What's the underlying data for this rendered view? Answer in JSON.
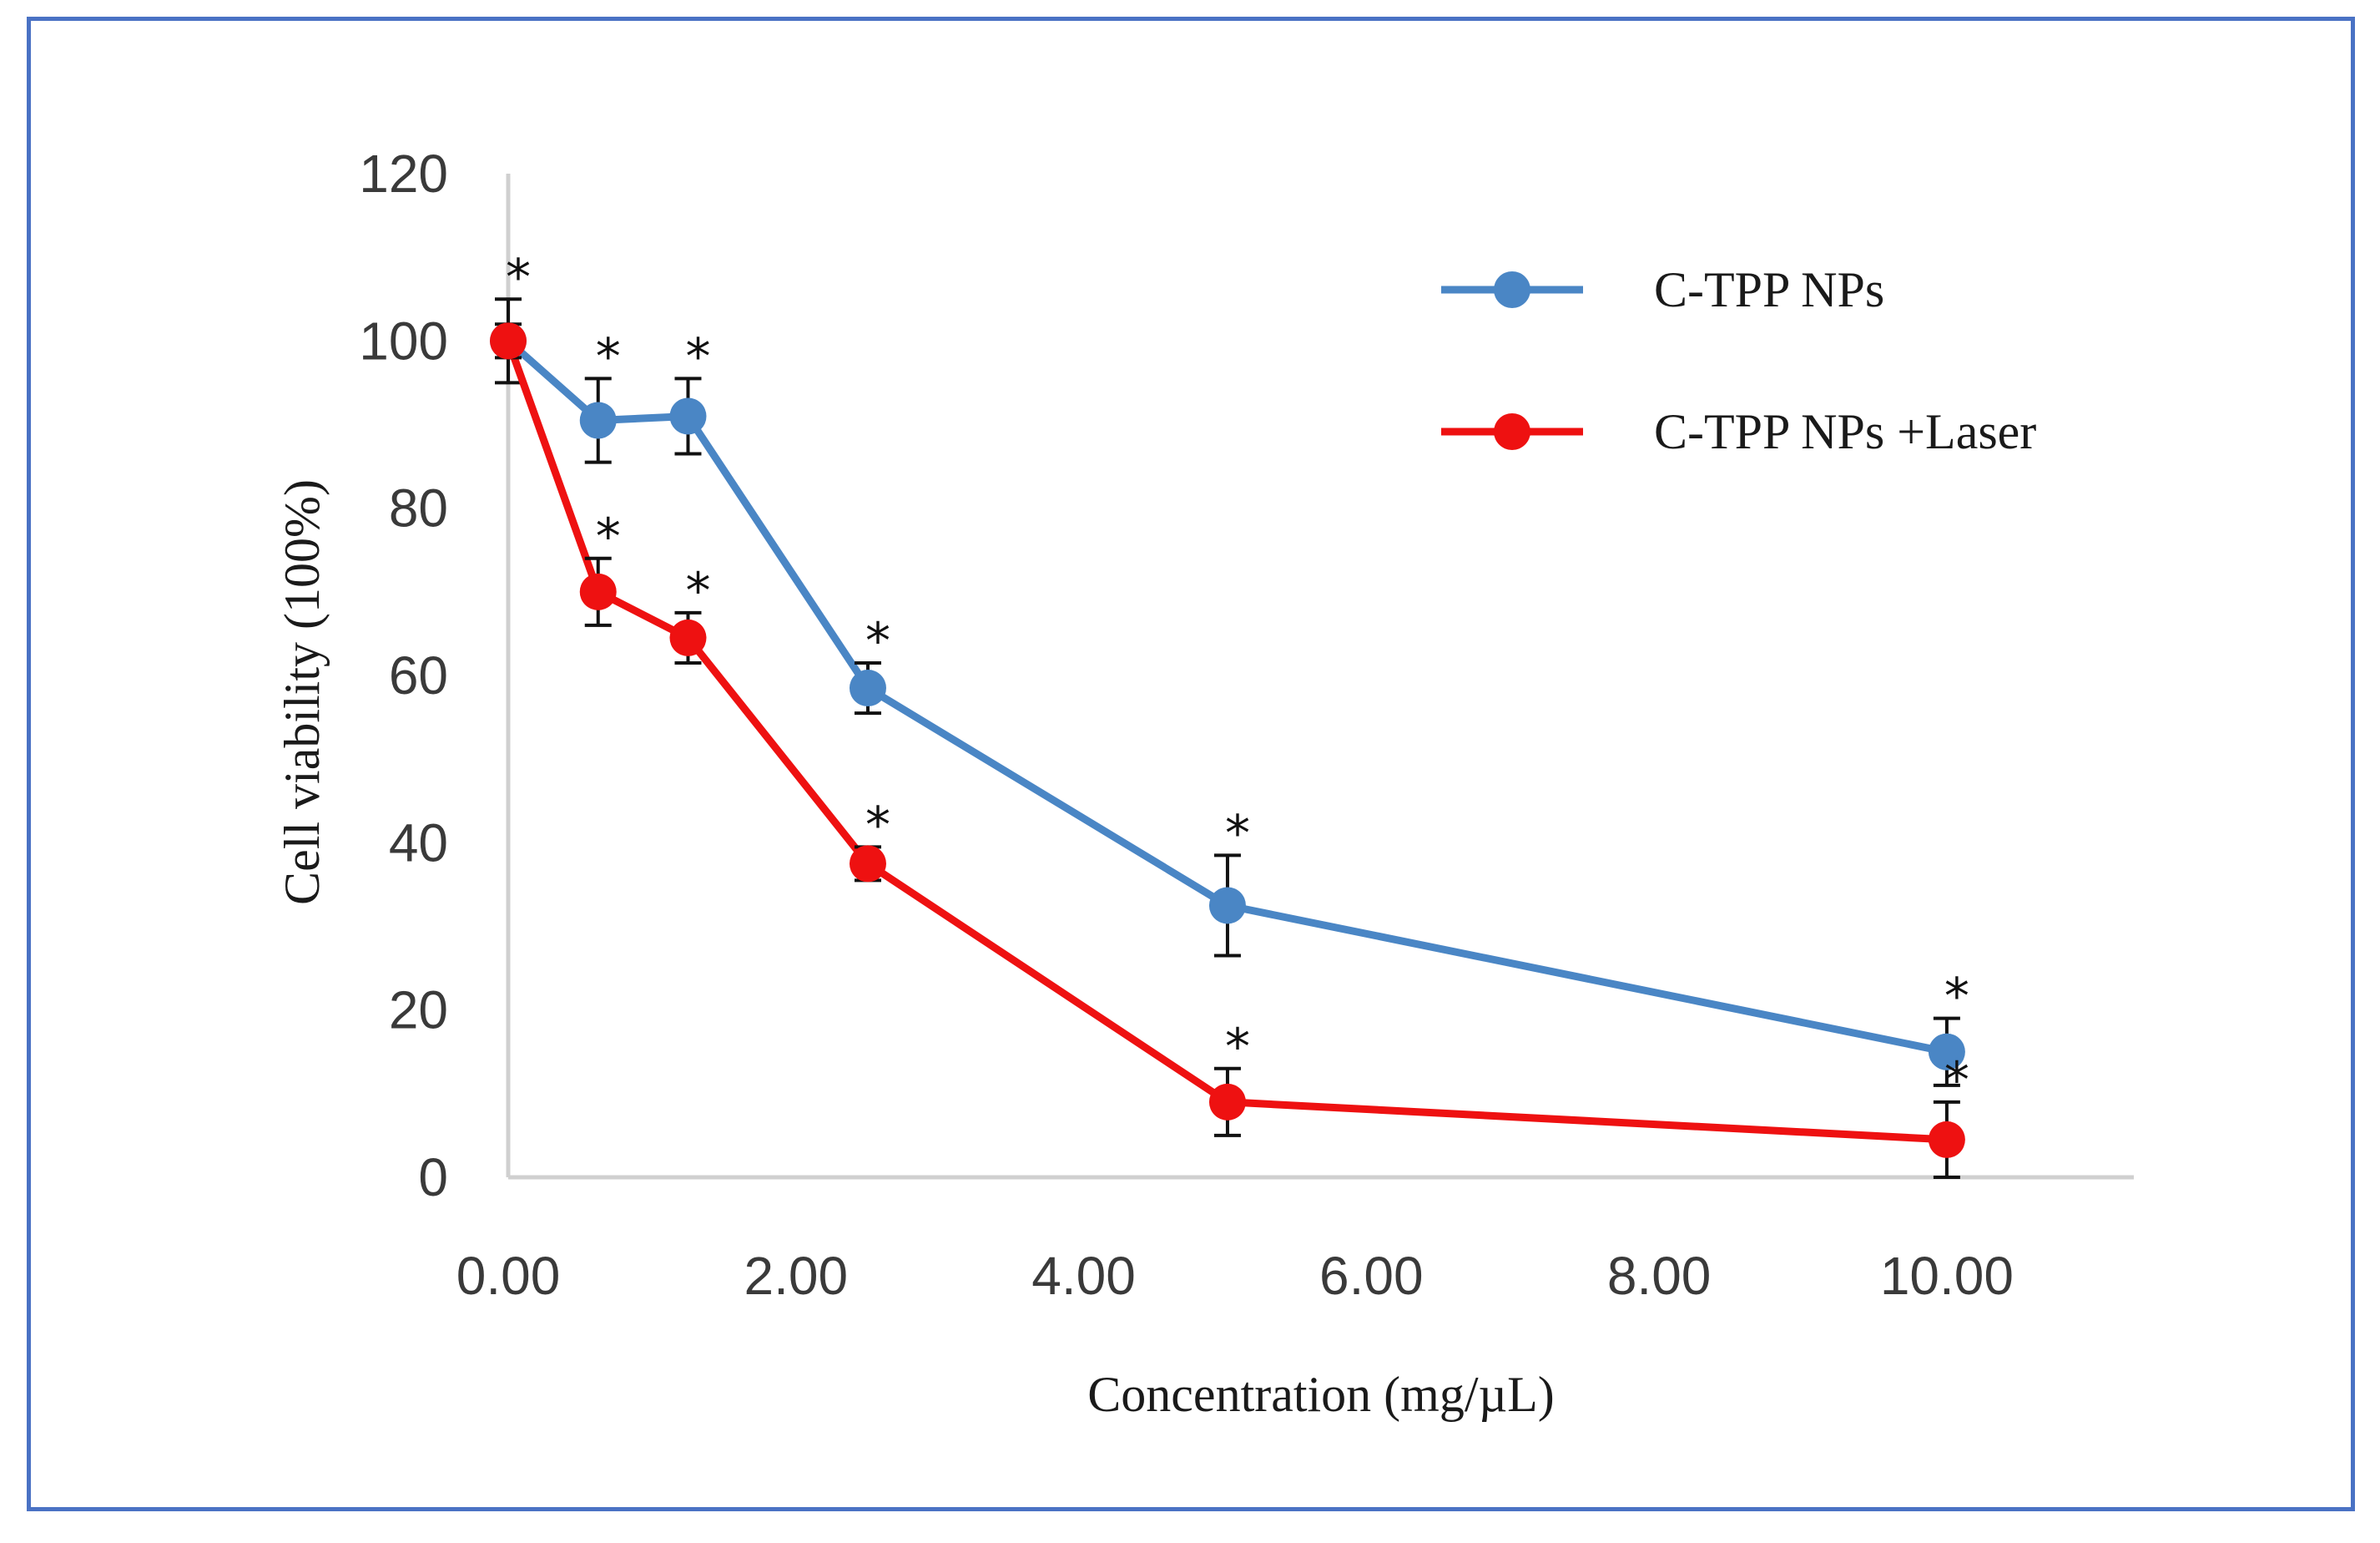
{
  "chart_data": {
    "type": "line",
    "title": "",
    "xlabel": "Concentration (mg/µL)",
    "ylabel": "Cell viability (100%)",
    "xlim": [
      0,
      11.3
    ],
    "ylim": [
      0,
      120
    ],
    "x_ticks": [
      0,
      2,
      4,
      6,
      8,
      10
    ],
    "x_tick_labels": [
      "0.00",
      "2.00",
      "4.00",
      "6.00",
      "8.00",
      "10.00"
    ],
    "y_ticks": [
      0,
      20,
      40,
      60,
      80,
      100,
      120
    ],
    "y_tick_labels": [
      "0",
      "20",
      "40",
      "60",
      "80",
      "100",
      "120"
    ],
    "grid": false,
    "legend_position": "top-right",
    "significance_marker": "*",
    "series": [
      {
        "name": "C-TPP NPs",
        "color": "#4a86c5",
        "x": [
          0,
          0.625,
          1.25,
          2.5,
          5,
          10
        ],
        "values": [
          100,
          90.5,
          91,
          58.5,
          32.5,
          15
        ],
        "errors": [
          5,
          5,
          4.5,
          3,
          6,
          4
        ],
        "significant": [
          true,
          true,
          true,
          true,
          true,
          true
        ]
      },
      {
        "name": "C-TPP NPs +Laser",
        "color": "#ee1111",
        "x": [
          0,
          0.625,
          1.25,
          2.5,
          5,
          10
        ],
        "values": [
          100,
          70,
          64.5,
          37.5,
          9,
          4.5
        ],
        "errors": [
          2,
          4,
          3,
          2,
          4,
          4.5
        ],
        "significant": [
          false,
          true,
          true,
          true,
          true,
          true
        ]
      }
    ]
  }
}
